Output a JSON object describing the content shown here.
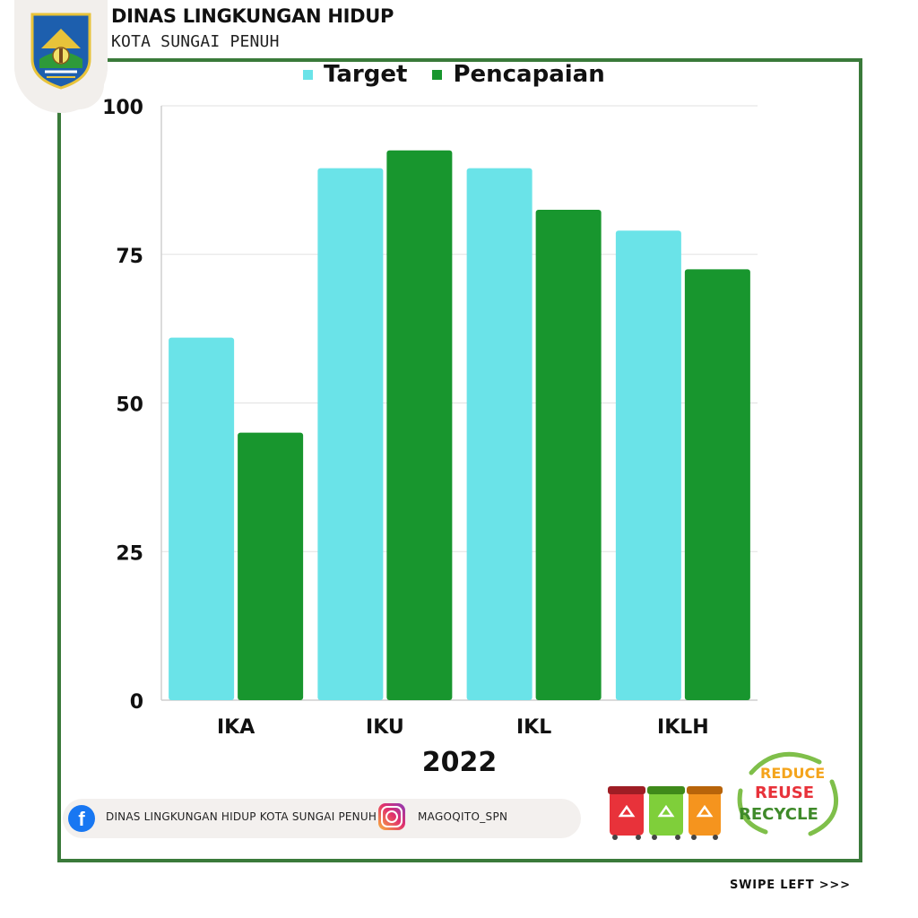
{
  "header": {
    "title": "DINAS LINGKUNGAN HIDUP",
    "subtitle": "KOTA SUNGAI PENUH"
  },
  "legend": {
    "target": "Target",
    "pencapaian": "Pencapaian"
  },
  "colors": {
    "target": "#6ae3e8",
    "pencapaian": "#18962e",
    "frame": "#3a7a3a"
  },
  "chart_data": {
    "type": "bar",
    "categories": [
      "IKA",
      "IKU",
      "IKL",
      "IKLH"
    ],
    "series": [
      {
        "name": "Target",
        "values": [
          61,
          89.5,
          89.5,
          79
        ]
      },
      {
        "name": "Pencapaian",
        "values": [
          45,
          92.5,
          82.5,
          72.5
        ]
      }
    ],
    "xlabel": "2022",
    "ylabel": "",
    "ylim": [
      0,
      100
    ],
    "yticks": [
      0,
      25,
      50,
      75,
      100
    ],
    "grid": true,
    "legend_position": "top"
  },
  "footer": {
    "facebook_icon": "facebook-icon",
    "facebook_text": "DINAS LINGKUNGAN HIDUP KOTA SUNGAI PENUH",
    "instagram_icon": "instagram-icon",
    "instagram_text": "MAGOQITO_SPN",
    "recycle_words": [
      "REDUCE",
      "REUSE",
      "RECYCLE"
    ]
  },
  "swipe_text": "SWIPE LEFT >>>"
}
